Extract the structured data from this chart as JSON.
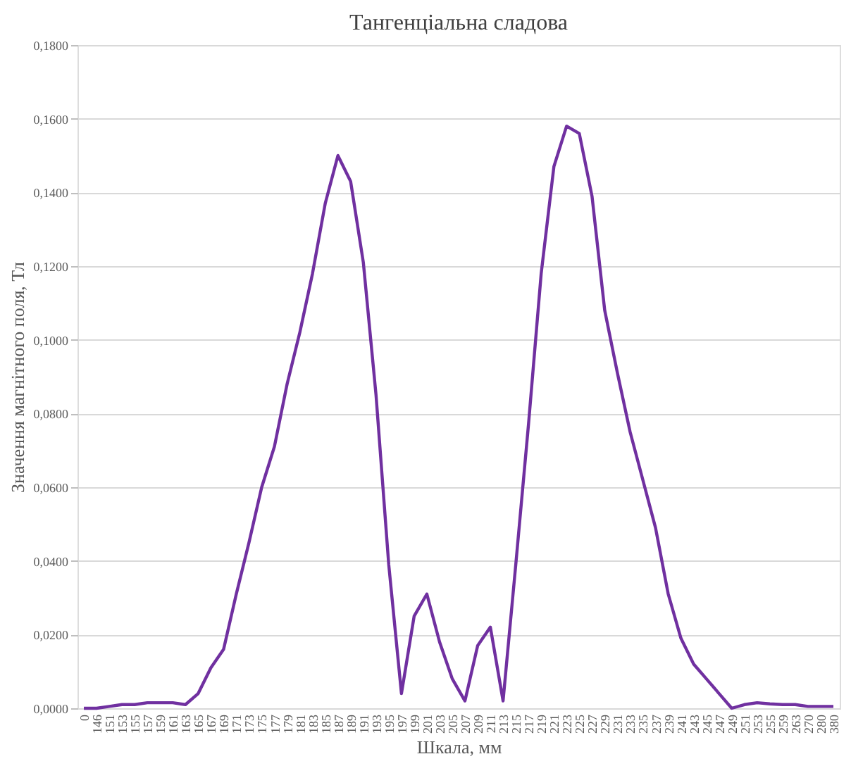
{
  "chart_data": {
    "type": "line",
    "title": "Тангенціальна сладова",
    "xlabel": "Шкала, мм",
    "ylabel": "Значення магнітного поля, Тл",
    "categories": [
      "0",
      "146",
      "151",
      "153",
      "155",
      "157",
      "159",
      "161",
      "163",
      "165",
      "167",
      "169",
      "171",
      "173",
      "175",
      "177",
      "179",
      "181",
      "183",
      "185",
      "187",
      "189",
      "191",
      "193",
      "195",
      "197",
      "199",
      "201",
      "203",
      "205",
      "207",
      "209",
      "211",
      "213",
      "215",
      "217",
      "219",
      "221",
      "223",
      "225",
      "227",
      "229",
      "231",
      "233",
      "235",
      "237",
      "239",
      "241",
      "243",
      "245",
      "247",
      "249",
      "251",
      "253",
      "255",
      "259",
      "263",
      "270",
      "280",
      "380"
    ],
    "series": [
      {
        "color": "#7030a0",
        "values": [
          0.0,
          0.0,
          0.0005,
          0.001,
          0.001,
          0.0015,
          0.0015,
          0.0015,
          0.001,
          0.004,
          0.011,
          0.016,
          0.031,
          0.045,
          0.06,
          0.071,
          0.088,
          0.102,
          0.118,
          0.137,
          0.15,
          0.143,
          0.121,
          0.085,
          0.039,
          0.004,
          0.025,
          0.031,
          0.018,
          0.008,
          0.002,
          0.017,
          0.022,
          0.002,
          0.039,
          0.077,
          0.118,
          0.147,
          0.158,
          0.156,
          0.139,
          0.108,
          0.091,
          0.075,
          0.062,
          0.049,
          0.031,
          0.019,
          0.012,
          0.008,
          0.004,
          0.0,
          0.001,
          0.0015,
          0.0012,
          0.001,
          0.001,
          0.0005,
          0.0005,
          0.0005
        ]
      }
    ],
    "ylim": [
      0,
      0.18
    ],
    "yticks": [
      {
        "value": 0,
        "label": "0,0000"
      },
      {
        "value": 0.02,
        "label": "0,0200"
      },
      {
        "value": 0.04,
        "label": "0,0400"
      },
      {
        "value": 0.06,
        "label": "0,0600"
      },
      {
        "value": 0.08,
        "label": "0,0800"
      },
      {
        "value": 0.1,
        "label": "0,1000"
      },
      {
        "value": 0.12,
        "label": "0,1200"
      },
      {
        "value": 0.14,
        "label": "0,1400"
      },
      {
        "value": 0.16,
        "label": "0,1600"
      },
      {
        "value": 0.18,
        "label": "0,1800"
      }
    ],
    "grid": "y",
    "marker": "none",
    "line_style": "solid"
  }
}
